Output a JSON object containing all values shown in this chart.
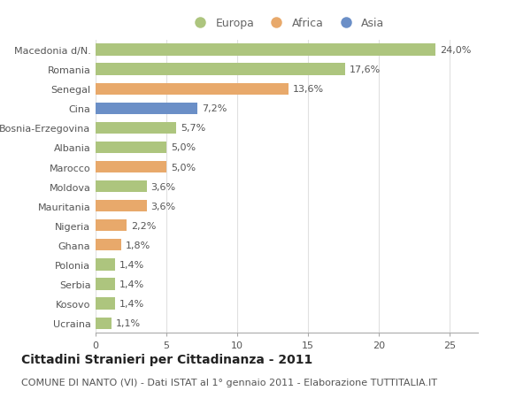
{
  "countries": [
    "Macedonia d/N.",
    "Romania",
    "Senegal",
    "Cina",
    "Bosnia-Erzegovina",
    "Albania",
    "Marocco",
    "Moldova",
    "Mauritania",
    "Nigeria",
    "Ghana",
    "Polonia",
    "Serbia",
    "Kosovo",
    "Ucraina"
  ],
  "values": [
    24.0,
    17.6,
    13.6,
    7.2,
    5.7,
    5.0,
    5.0,
    3.6,
    3.6,
    2.2,
    1.8,
    1.4,
    1.4,
    1.4,
    1.1
  ],
  "labels": [
    "24,0%",
    "17,6%",
    "13,6%",
    "7,2%",
    "5,7%",
    "5,0%",
    "5,0%",
    "3,6%",
    "3,6%",
    "2,2%",
    "1,8%",
    "1,4%",
    "1,4%",
    "1,4%",
    "1,1%"
  ],
  "continents": [
    "Europa",
    "Europa",
    "Africa",
    "Asia",
    "Europa",
    "Europa",
    "Africa",
    "Europa",
    "Africa",
    "Africa",
    "Africa",
    "Europa",
    "Europa",
    "Europa",
    "Europa"
  ],
  "colors": {
    "Europa": "#adc57e",
    "Africa": "#e8a96b",
    "Asia": "#6b8fc7"
  },
  "xlim": [
    0,
    27
  ],
  "xticks": [
    0,
    5,
    10,
    15,
    20,
    25
  ],
  "title": "Cittadini Stranieri per Cittadinanza - 2011",
  "subtitle": "COMUNE DI NANTO (VI) - Dati ISTAT al 1° gennaio 2011 - Elaborazione TUTTITALIA.IT",
  "background_color": "#ffffff",
  "grid_color": "#e0e0e0",
  "bar_height": 0.6,
  "title_fontsize": 10,
  "subtitle_fontsize": 8,
  "label_fontsize": 8,
  "tick_fontsize": 8,
  "legend_fontsize": 9
}
